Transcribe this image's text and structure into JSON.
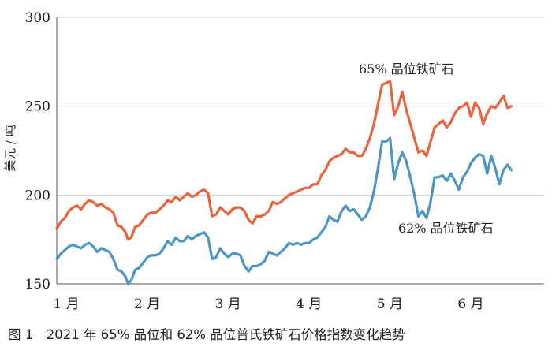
{
  "caption": "图 1　2021 年 65% 品位和 62% 品位普氏铁矿石价格指数变化趋势",
  "chart_data": {
    "type": "line",
    "ylabel": "美元 / 吨",
    "ylim": [
      150,
      300
    ],
    "yticks": [
      150,
      200,
      250,
      300
    ],
    "xlabels": [
      "1 月",
      "2 月",
      "3 月",
      "4 月",
      "5 月",
      "6 月"
    ],
    "xlim": [
      1,
      6.9
    ],
    "grid": true,
    "colors": {
      "series65": "#e8643c",
      "series62": "#4b96c2",
      "grid": "#cfcfcf"
    },
    "series": [
      {
        "name": "65% 品位铁矿石",
        "points": [
          [
            1.0,
            181
          ],
          [
            1.05,
            185
          ],
          [
            1.1,
            187
          ],
          [
            1.15,
            191
          ],
          [
            1.2,
            193
          ],
          [
            1.25,
            194
          ],
          [
            1.3,
            192
          ],
          [
            1.35,
            195
          ],
          [
            1.4,
            197
          ],
          [
            1.45,
            196
          ],
          [
            1.5,
            194
          ],
          [
            1.55,
            195
          ],
          [
            1.6,
            193
          ],
          [
            1.65,
            192
          ],
          [
            1.7,
            190
          ],
          [
            1.75,
            183
          ],
          [
            1.8,
            182
          ],
          [
            1.85,
            179
          ],
          [
            1.88,
            175
          ],
          [
            1.92,
            176
          ],
          [
            1.97,
            182
          ],
          [
            2.02,
            183
          ],
          [
            2.07,
            186
          ],
          [
            2.12,
            189
          ],
          [
            2.17,
            190
          ],
          [
            2.22,
            190
          ],
          [
            2.27,
            192
          ],
          [
            2.32,
            194
          ],
          [
            2.37,
            197
          ],
          [
            2.42,
            196
          ],
          [
            2.47,
            199
          ],
          [
            2.52,
            197
          ],
          [
            2.57,
            199
          ],
          [
            2.62,
            201
          ],
          [
            2.67,
            199
          ],
          [
            2.72,
            200
          ],
          [
            2.77,
            202
          ],
          [
            2.82,
            203
          ],
          [
            2.87,
            201
          ],
          [
            2.92,
            188
          ],
          [
            2.97,
            189
          ],
          [
            3.02,
            193
          ],
          [
            3.07,
            191
          ],
          [
            3.12,
            189
          ],
          [
            3.17,
            192
          ],
          [
            3.22,
            193
          ],
          [
            3.27,
            193
          ],
          [
            3.32,
            191
          ],
          [
            3.37,
            186
          ],
          [
            3.42,
            184
          ],
          [
            3.47,
            188
          ],
          [
            3.52,
            188
          ],
          [
            3.57,
            189
          ],
          [
            3.62,
            191
          ],
          [
            3.67,
            196
          ],
          [
            3.72,
            195
          ],
          [
            3.77,
            196
          ],
          [
            3.82,
            198
          ],
          [
            3.87,
            200
          ],
          [
            3.92,
            201
          ],
          [
            3.97,
            202
          ],
          [
            4.02,
            203
          ],
          [
            4.07,
            204
          ],
          [
            4.12,
            204
          ],
          [
            4.17,
            206
          ],
          [
            4.22,
            206
          ],
          [
            4.27,
            211
          ],
          [
            4.32,
            214
          ],
          [
            4.37,
            219
          ],
          [
            4.42,
            221
          ],
          [
            4.47,
            222
          ],
          [
            4.52,
            223
          ],
          [
            4.57,
            226
          ],
          [
            4.62,
            224
          ],
          [
            4.67,
            224
          ],
          [
            4.72,
            222
          ],
          [
            4.77,
            222
          ],
          [
            4.82,
            226
          ],
          [
            4.87,
            232
          ],
          [
            4.92,
            240
          ],
          [
            4.97,
            251
          ],
          [
            5.02,
            262
          ],
          [
            5.07,
            263
          ],
          [
            5.12,
            264
          ],
          [
            5.17,
            245
          ],
          [
            5.22,
            250
          ],
          [
            5.27,
            258
          ],
          [
            5.32,
            248
          ],
          [
            5.37,
            240
          ],
          [
            5.42,
            232
          ],
          [
            5.47,
            224
          ],
          [
            5.52,
            225
          ],
          [
            5.57,
            222
          ],
          [
            5.62,
            230
          ],
          [
            5.67,
            238
          ],
          [
            5.72,
            240
          ],
          [
            5.77,
            242
          ],
          [
            5.82,
            238
          ],
          [
            5.87,
            241
          ],
          [
            5.92,
            246
          ],
          [
            5.97,
            249
          ],
          [
            6.02,
            250
          ],
          [
            6.07,
            252
          ],
          [
            6.12,
            244
          ],
          [
            6.17,
            252
          ],
          [
            6.22,
            249
          ],
          [
            6.27,
            240
          ],
          [
            6.32,
            246
          ],
          [
            6.37,
            250
          ],
          [
            6.42,
            249
          ],
          [
            6.47,
            252
          ],
          [
            6.52,
            256
          ],
          [
            6.57,
            249
          ],
          [
            6.62,
            250
          ]
        ]
      },
      {
        "name": "62% 品位铁矿石",
        "points": [
          [
            1.0,
            164
          ],
          [
            1.05,
            167
          ],
          [
            1.1,
            169
          ],
          [
            1.15,
            171
          ],
          [
            1.2,
            172
          ],
          [
            1.25,
            171
          ],
          [
            1.3,
            170
          ],
          [
            1.35,
            172
          ],
          [
            1.4,
            173
          ],
          [
            1.45,
            171
          ],
          [
            1.5,
            168
          ],
          [
            1.55,
            170
          ],
          [
            1.6,
            169
          ],
          [
            1.65,
            168
          ],
          [
            1.7,
            164
          ],
          [
            1.75,
            158
          ],
          [
            1.8,
            157
          ],
          [
            1.85,
            154
          ],
          [
            1.88,
            150
          ],
          [
            1.92,
            152
          ],
          [
            1.97,
            158
          ],
          [
            2.02,
            159
          ],
          [
            2.07,
            162
          ],
          [
            2.12,
            165
          ],
          [
            2.17,
            166
          ],
          [
            2.22,
            166
          ],
          [
            2.27,
            167
          ],
          [
            2.32,
            170
          ],
          [
            2.37,
            174
          ],
          [
            2.42,
            172
          ],
          [
            2.47,
            176
          ],
          [
            2.52,
            174
          ],
          [
            2.57,
            174
          ],
          [
            2.62,
            177
          ],
          [
            2.67,
            175
          ],
          [
            2.72,
            177
          ],
          [
            2.77,
            178
          ],
          [
            2.82,
            179
          ],
          [
            2.87,
            176
          ],
          [
            2.92,
            164
          ],
          [
            2.97,
            165
          ],
          [
            3.02,
            170
          ],
          [
            3.07,
            167
          ],
          [
            3.12,
            165
          ],
          [
            3.17,
            167
          ],
          [
            3.22,
            167
          ],
          [
            3.27,
            166
          ],
          [
            3.32,
            160
          ],
          [
            3.37,
            157
          ],
          [
            3.42,
            160
          ],
          [
            3.47,
            160
          ],
          [
            3.52,
            161
          ],
          [
            3.57,
            163
          ],
          [
            3.62,
            168
          ],
          [
            3.67,
            167
          ],
          [
            3.72,
            166
          ],
          [
            3.77,
            168
          ],
          [
            3.82,
            170
          ],
          [
            3.87,
            173
          ],
          [
            3.92,
            172
          ],
          [
            3.97,
            173
          ],
          [
            4.02,
            172
          ],
          [
            4.07,
            173
          ],
          [
            4.12,
            173
          ],
          [
            4.17,
            175
          ],
          [
            4.22,
            176
          ],
          [
            4.27,
            179
          ],
          [
            4.32,
            182
          ],
          [
            4.37,
            188
          ],
          [
            4.42,
            186
          ],
          [
            4.47,
            185
          ],
          [
            4.52,
            191
          ],
          [
            4.57,
            194
          ],
          [
            4.62,
            191
          ],
          [
            4.67,
            192
          ],
          [
            4.72,
            189
          ],
          [
            4.77,
            186
          ],
          [
            4.82,
            188
          ],
          [
            4.87,
            193
          ],
          [
            4.92,
            202
          ],
          [
            4.97,
            215
          ],
          [
            5.02,
            230
          ],
          [
            5.07,
            230
          ],
          [
            5.12,
            232
          ],
          [
            5.17,
            209
          ],
          [
            5.22,
            218
          ],
          [
            5.27,
            224
          ],
          [
            5.32,
            219
          ],
          [
            5.37,
            210
          ],
          [
            5.42,
            200
          ],
          [
            5.47,
            188
          ],
          [
            5.52,
            191
          ],
          [
            5.57,
            187
          ],
          [
            5.62,
            196
          ],
          [
            5.67,
            210
          ],
          [
            5.72,
            210
          ],
          [
            5.77,
            211
          ],
          [
            5.82,
            208
          ],
          [
            5.87,
            212
          ],
          [
            5.92,
            208
          ],
          [
            5.97,
            203
          ],
          [
            6.02,
            210
          ],
          [
            6.07,
            213
          ],
          [
            6.12,
            218
          ],
          [
            6.17,
            221
          ],
          [
            6.22,
            223
          ],
          [
            6.27,
            222
          ],
          [
            6.32,
            212
          ],
          [
            6.37,
            222
          ],
          [
            6.42,
            215
          ],
          [
            6.47,
            206
          ],
          [
            6.52,
            214
          ],
          [
            6.57,
            217
          ],
          [
            6.62,
            214
          ]
        ]
      }
    ],
    "annotations": [
      "65% 品位铁矿石",
      "62% 品位铁矿石"
    ]
  }
}
